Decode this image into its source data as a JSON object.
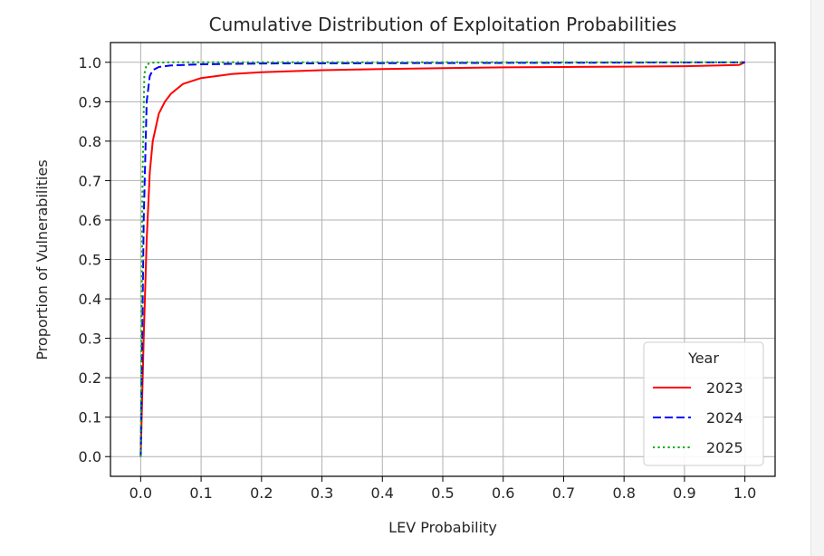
{
  "chart_data": {
    "type": "line",
    "title": "Cumulative Distribution of Exploitation Probabilities",
    "xlabel": "LEV Probability",
    "ylabel": "Proportion of Vulnerabilities",
    "xlim": [
      -0.05,
      1.05
    ],
    "ylim": [
      -0.05,
      1.05
    ],
    "xticks": [
      0.0,
      0.1,
      0.2,
      0.3,
      0.4,
      0.5,
      0.6,
      0.7,
      0.8,
      0.9,
      1.0
    ],
    "xtick_labels": [
      "0.0",
      "0.1",
      "0.2",
      "0.3",
      "0.4",
      "0.5",
      "0.6",
      "0.7",
      "0.8",
      "0.9",
      "1.0"
    ],
    "yticks": [
      0.0,
      0.1,
      0.2,
      0.3,
      0.4,
      0.5,
      0.6,
      0.7,
      0.8,
      0.9,
      1.0
    ],
    "ytick_labels": [
      "0.0",
      "0.1",
      "0.2",
      "0.3",
      "0.4",
      "0.5",
      "0.6",
      "0.7",
      "0.8",
      "0.9",
      "1.0"
    ],
    "grid": true,
    "legend": {
      "title": "Year",
      "placement": "lower-right"
    },
    "series": [
      {
        "name": "2023",
        "color": "#ff0000",
        "style": "solid",
        "x": [
          0.0,
          0.005,
          0.01,
          0.015,
          0.02,
          0.03,
          0.04,
          0.05,
          0.07,
          0.1,
          0.15,
          0.2,
          0.3,
          0.4,
          0.5,
          0.6,
          0.7,
          0.8,
          0.9,
          0.99,
          1.0
        ],
        "y": [
          0.0,
          0.3,
          0.55,
          0.72,
          0.8,
          0.87,
          0.9,
          0.92,
          0.945,
          0.96,
          0.97,
          0.975,
          0.98,
          0.983,
          0.985,
          0.987,
          0.988,
          0.989,
          0.99,
          0.993,
          1.0
        ]
      },
      {
        "name": "2024",
        "color": "#0000ff",
        "style": "dashed",
        "x": [
          0.0,
          0.005,
          0.01,
          0.015,
          0.02,
          0.03,
          0.05,
          0.1,
          0.2,
          0.5,
          1.0
        ],
        "y": [
          0.0,
          0.6,
          0.9,
          0.965,
          0.98,
          0.988,
          0.992,
          0.995,
          0.997,
          0.998,
          1.0
        ]
      },
      {
        "name": "2025",
        "color": "#00aa00",
        "style": "dotted",
        "x": [
          0.0,
          0.003,
          0.006,
          0.01,
          0.02,
          0.05,
          1.0
        ],
        "y": [
          0.0,
          0.7,
          0.97,
          0.995,
          0.999,
          1.0,
          1.0
        ]
      }
    ]
  }
}
